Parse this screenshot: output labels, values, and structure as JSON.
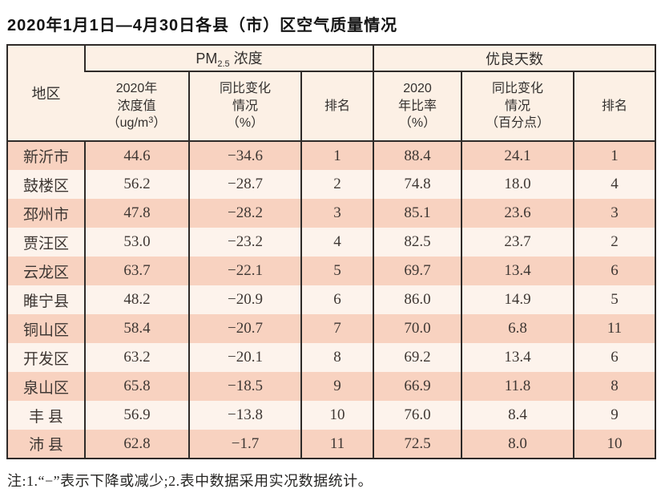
{
  "title": "2020年1月1日—4月30日各县（市）区空气质量情况",
  "note": "注:1.“−”表示下降或减少;2.表中数据采用实况数据统计。",
  "colors": {
    "border": "#2f2b29",
    "row_salmon": "#f8d2c0",
    "row_light": "#fdf3ec",
    "header_bg": "#fcf0e5",
    "text_ink": "#3e3733"
  },
  "table": {
    "region_header": "地区",
    "group_pm": {
      "pm": "PM",
      "sub": "2.5",
      "suffix": " 浓度"
    },
    "group_good": "优良天数",
    "sub_headers": {
      "pm_value": {
        "l1": "2020年",
        "l2": "浓度值",
        "l3a": "（ug/m",
        "l3sup": "3",
        "l3b": "）"
      },
      "pm_change": {
        "l1": "同比变化",
        "l2": "情况",
        "l3": "（%）"
      },
      "pm_rank": "排名",
      "good_rate": {
        "l1": "2020",
        "l2": "年比率",
        "l3": "（%）"
      },
      "good_change": {
        "l1": "同比变化",
        "l2": "情况",
        "l3": "（百分点）"
      },
      "good_rank": "排名"
    },
    "rows": [
      {
        "region": "新沂市",
        "pm_value": "44.6",
        "pm_change": "−34.6",
        "pm_rank": "1",
        "good_rate": "88.4",
        "good_change": "24.1",
        "good_rank": "1"
      },
      {
        "region": "鼓楼区",
        "pm_value": "56.2",
        "pm_change": "−28.7",
        "pm_rank": "2",
        "good_rate": "74.8",
        "good_change": "18.0",
        "good_rank": "4"
      },
      {
        "region": "邳州市",
        "pm_value": "47.8",
        "pm_change": "−28.2",
        "pm_rank": "3",
        "good_rate": "85.1",
        "good_change": "23.6",
        "good_rank": "3"
      },
      {
        "region": "贾汪区",
        "pm_value": "53.0",
        "pm_change": "−23.2",
        "pm_rank": "4",
        "good_rate": "82.5",
        "good_change": "23.7",
        "good_rank": "2"
      },
      {
        "region": "云龙区",
        "pm_value": "63.7",
        "pm_change": "−22.1",
        "pm_rank": "5",
        "good_rate": "69.7",
        "good_change": "13.4",
        "good_rank": "6"
      },
      {
        "region": "睢宁县",
        "pm_value": "48.2",
        "pm_change": "−20.9",
        "pm_rank": "6",
        "good_rate": "86.0",
        "good_change": "14.9",
        "good_rank": "5"
      },
      {
        "region": "铜山区",
        "pm_value": "58.4",
        "pm_change": "−20.7",
        "pm_rank": "7",
        "good_rate": "70.0",
        "good_change": "6.8",
        "good_rank": "11"
      },
      {
        "region": "开发区",
        "pm_value": "63.2",
        "pm_change": "−20.1",
        "pm_rank": "8",
        "good_rate": "69.2",
        "good_change": "13.4",
        "good_rank": "6"
      },
      {
        "region": "泉山区",
        "pm_value": "65.8",
        "pm_change": "−18.5",
        "pm_rank": "9",
        "good_rate": "66.9",
        "good_change": "11.8",
        "good_rank": "8"
      },
      {
        "region": "丰 县",
        "pm_value": "56.9",
        "pm_change": "−13.8",
        "pm_rank": "10",
        "good_rate": "76.0",
        "good_change": "8.4",
        "good_rank": "9"
      },
      {
        "region": "沛 县",
        "pm_value": "62.8",
        "pm_change": "−1.7",
        "pm_rank": "11",
        "good_rate": "72.5",
        "good_change": "8.0",
        "good_rank": "10"
      }
    ]
  },
  "chart_data": {
    "type": "table",
    "title": "2020年1月1日—4月30日各县（市）区空气质量情况",
    "columns": [
      "地区",
      "PM2.5浓度 2020年浓度值（ug/m3）",
      "PM2.5浓度 同比变化情况（%）",
      "PM2.5浓度 排名",
      "优良天数 2020年比率（%）",
      "优良天数 同比变化情况（百分点）",
      "优良天数 排名"
    ],
    "rows": [
      [
        "新沂市",
        44.6,
        -34.6,
        1,
        88.4,
        24.1,
        1
      ],
      [
        "鼓楼区",
        56.2,
        -28.7,
        2,
        74.8,
        18.0,
        4
      ],
      [
        "邳州市",
        47.8,
        -28.2,
        3,
        85.1,
        23.6,
        3
      ],
      [
        "贾汪区",
        53.0,
        -23.2,
        4,
        82.5,
        23.7,
        2
      ],
      [
        "云龙区",
        63.7,
        -22.1,
        5,
        69.7,
        13.4,
        6
      ],
      [
        "睢宁县",
        48.2,
        -20.9,
        6,
        86.0,
        14.9,
        5
      ],
      [
        "铜山区",
        58.4,
        -20.7,
        7,
        70.0,
        6.8,
        11
      ],
      [
        "开发区",
        63.2,
        -20.1,
        8,
        69.2,
        13.4,
        6
      ],
      [
        "泉山区",
        65.8,
        -18.5,
        9,
        66.9,
        11.8,
        8
      ],
      [
        "丰县",
        56.9,
        -13.8,
        10,
        76.0,
        8.4,
        9
      ],
      [
        "沛县",
        62.8,
        -1.7,
        11,
        72.5,
        8.0,
        10
      ]
    ],
    "note": "注:1.“−”表示下降或减少;2.表中数据采用实况数据统计。"
  }
}
